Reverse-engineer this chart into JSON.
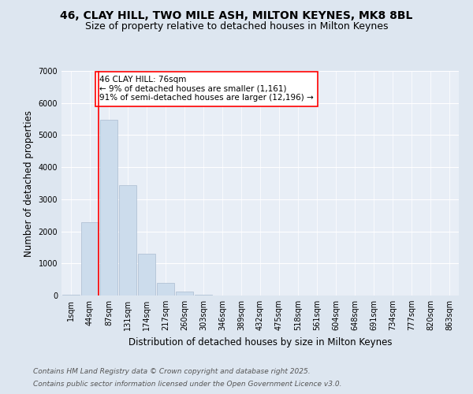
{
  "title_line1": "46, CLAY HILL, TWO MILE ASH, MILTON KEYNES, MK8 8BL",
  "title_line2": "Size of property relative to detached houses in Milton Keynes",
  "xlabel": "Distribution of detached houses by size in Milton Keynes",
  "ylabel": "Number of detached properties",
  "categories": [
    "1sqm",
    "44sqm",
    "87sqm",
    "131sqm",
    "174sqm",
    "217sqm",
    "260sqm",
    "303sqm",
    "346sqm",
    "389sqm",
    "432sqm",
    "475sqm",
    "518sqm",
    "561sqm",
    "604sqm",
    "648sqm",
    "691sqm",
    "734sqm",
    "777sqm",
    "820sqm",
    "863sqm"
  ],
  "values": [
    30,
    2280,
    5480,
    3430,
    1310,
    390,
    120,
    35,
    10,
    5,
    3,
    2,
    1,
    1,
    0,
    0,
    0,
    0,
    0,
    0,
    0
  ],
  "bar_color": "#ccdcec",
  "bar_edge_color": "#aabbd0",
  "vline_x": 1.45,
  "vline_color": "red",
  "annotation_text": "46 CLAY HILL: 76sqm\n← 9% of detached houses are smaller (1,161)\n91% of semi-detached houses are larger (12,196) →",
  "annotation_box_color": "white",
  "annotation_box_edge_color": "red",
  "ylim": [
    0,
    7000
  ],
  "yticks": [
    0,
    1000,
    2000,
    3000,
    4000,
    5000,
    6000,
    7000
  ],
  "background_color": "#dde6f0",
  "plot_background_color": "#e8eef6",
  "footer_line1": "Contains HM Land Registry data © Crown copyright and database right 2025.",
  "footer_line2": "Contains public sector information licensed under the Open Government Licence v3.0.",
  "title_fontsize": 10,
  "subtitle_fontsize": 9,
  "axis_label_fontsize": 8.5,
  "tick_fontsize": 7,
  "annotation_fontsize": 7.5,
  "footer_fontsize": 6.5
}
